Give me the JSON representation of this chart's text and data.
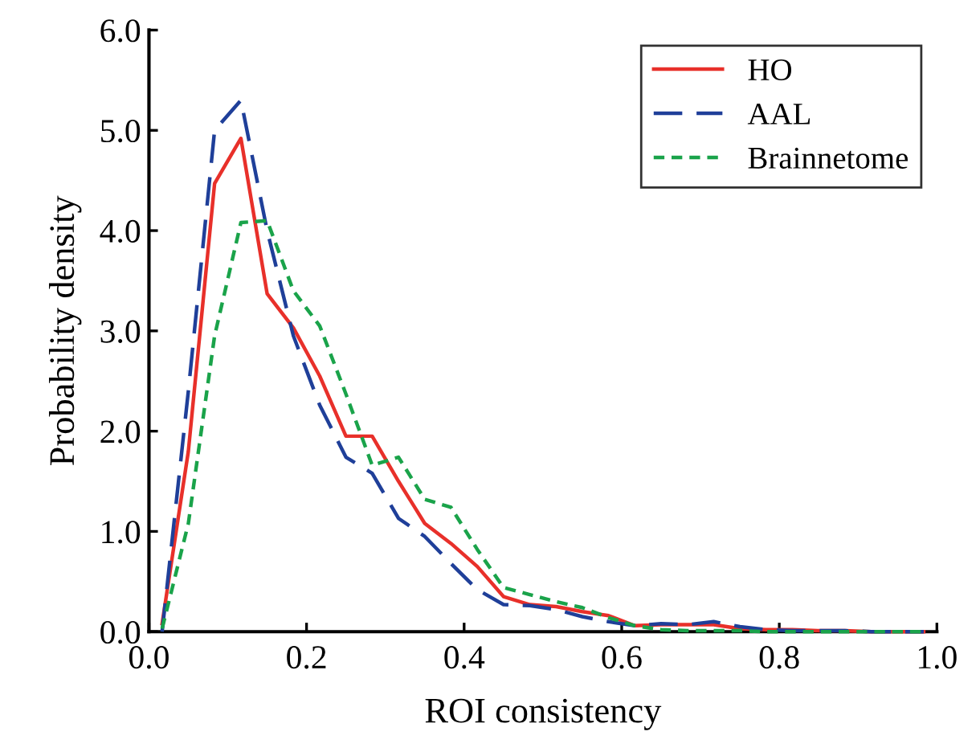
{
  "chart_data": {
    "type": "line",
    "xlabel": "ROI consistency",
    "ylabel": "Probability density",
    "x": [
      0.0167,
      0.05,
      0.0833,
      0.1167,
      0.15,
      0.1833,
      0.2167,
      0.25,
      0.2833,
      0.3167,
      0.35,
      0.3833,
      0.4167,
      0.45,
      0.4833,
      0.5167,
      0.55,
      0.5833,
      0.6167,
      0.65,
      0.6833,
      0.7167,
      0.75,
      0.7833,
      0.8167,
      0.85,
      0.8833,
      0.9167,
      0.95,
      0.9833
    ],
    "series": [
      {
        "name": "HO",
        "color": "#e8302a",
        "line_style": "solid",
        "values": [
          0.08,
          1.8,
          4.47,
          4.92,
          3.37,
          3.03,
          2.55,
          1.95,
          1.95,
          1.5,
          1.08,
          0.88,
          0.65,
          0.35,
          0.27,
          0.25,
          0.2,
          0.16,
          0.06,
          0.07,
          0.07,
          0.07,
          0.03,
          0.02,
          0.02,
          0.01,
          0.01,
          0.0,
          0.0,
          0.0
        ]
      },
      {
        "name": "AAL",
        "color": "#1f3f99",
        "line_style": "dashed",
        "values": [
          0.0,
          2.4,
          5.0,
          5.3,
          4.0,
          2.95,
          2.26,
          1.74,
          1.58,
          1.13,
          0.95,
          0.68,
          0.42,
          0.27,
          0.26,
          0.22,
          0.15,
          0.1,
          0.06,
          0.08,
          0.07,
          0.1,
          0.05,
          0.02,
          0.01,
          0.01,
          0.01,
          0.0,
          0.0,
          0.0
        ]
      },
      {
        "name": "Brainnetome",
        "color": "#1aa34a",
        "line_style": "dotted",
        "values": [
          0.03,
          1.08,
          2.95,
          4.08,
          4.1,
          3.4,
          3.05,
          2.37,
          1.66,
          1.74,
          1.32,
          1.24,
          0.82,
          0.44,
          0.37,
          0.3,
          0.24,
          0.14,
          0.06,
          0.02,
          0.01,
          0.01,
          0.01,
          0.0,
          0.0,
          0.0,
          0.0,
          0.0,
          0.0,
          0.0
        ]
      }
    ],
    "xlim": [
      0.0,
      1.0
    ],
    "xticks": [
      {
        "value": 0,
        "label": "0.0"
      },
      0.2,
      0.4,
      0.6,
      0.8,
      {
        "value": 1,
        "label": "1.0"
      }
    ],
    "ylim": [
      0.0,
      6.0
    ],
    "yticks": [
      {
        "value": 0,
        "label": "0.0"
      },
      {
        "value": 1,
        "label": "1.0"
      },
      {
        "value": 2,
        "label": "2.0"
      },
      {
        "value": 3,
        "label": "3.0"
      },
      {
        "value": 4,
        "label": "4.0"
      },
      {
        "value": 5,
        "label": "5.0"
      },
      {
        "value": 6,
        "label": "6.0"
      }
    ],
    "grid": false,
    "legend": "top right",
    "marker": "none"
  }
}
